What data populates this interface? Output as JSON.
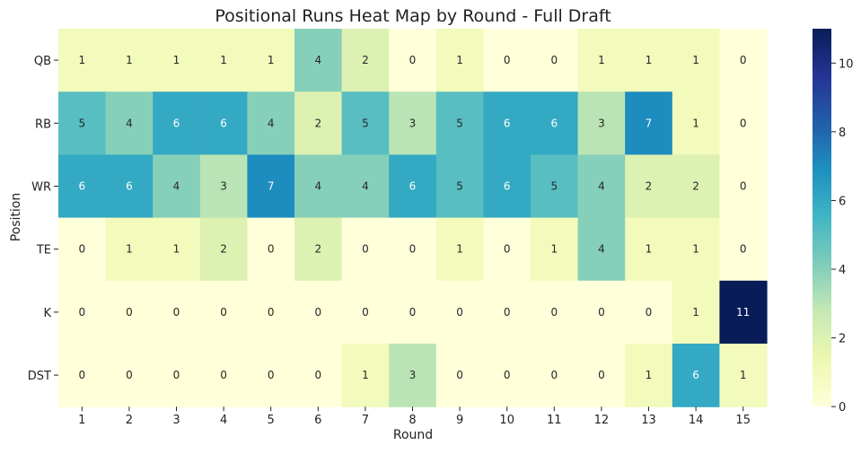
{
  "chart_data": {
    "type": "heatmap",
    "title": "Positional Runs Heat Map by Round - Full Draft",
    "xlabel": "Round",
    "ylabel": "Position",
    "x_categories": [
      "1",
      "2",
      "3",
      "4",
      "5",
      "6",
      "7",
      "8",
      "9",
      "10",
      "11",
      "12",
      "13",
      "14",
      "15"
    ],
    "y_categories": [
      "QB",
      "RB",
      "WR",
      "TE",
      "K",
      "DST"
    ],
    "values": [
      [
        1,
        1,
        1,
        1,
        1,
        4,
        2,
        0,
        1,
        0,
        0,
        1,
        1,
        1,
        0
      ],
      [
        5,
        4,
        6,
        6,
        4,
        2,
        5,
        3,
        5,
        6,
        6,
        3,
        7,
        1,
        0
      ],
      [
        6,
        6,
        4,
        3,
        7,
        4,
        4,
        6,
        5,
        6,
        5,
        4,
        2,
        2,
        0
      ],
      [
        0,
        1,
        1,
        2,
        0,
        2,
        0,
        0,
        1,
        0,
        1,
        4,
        1,
        1,
        0
      ],
      [
        0,
        0,
        0,
        0,
        0,
        0,
        0,
        0,
        0,
        0,
        0,
        0,
        0,
        1,
        11
      ],
      [
        0,
        0,
        0,
        0,
        0,
        0,
        1,
        3,
        0,
        0,
        0,
        0,
        1,
        6,
        1
      ]
    ],
    "colorbar": {
      "min": 0,
      "max": 11,
      "ticks": [
        0,
        2,
        4,
        6,
        8,
        10
      ],
      "colormap": "YlGnBu"
    },
    "annotations": true,
    "grid": false
  }
}
